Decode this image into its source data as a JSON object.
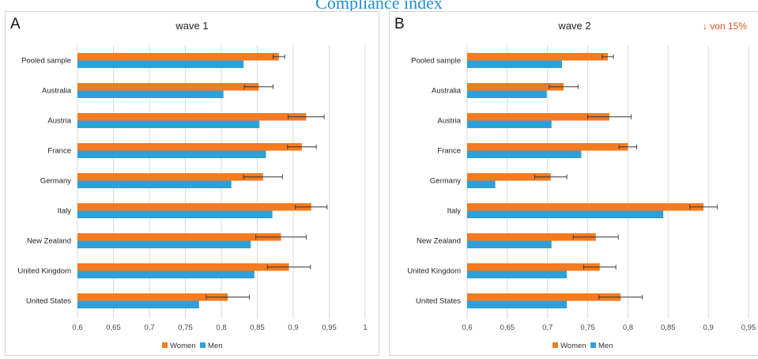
{
  "page_title": "Compliance index",
  "colors": {
    "women": "#f47b20",
    "men": "#2f9fd8",
    "grid": "#d9d9d9",
    "error_bar": "#333333"
  },
  "chart_data": [
    {
      "panel_letter": "A",
      "type": "bar",
      "orientation": "horizontal",
      "title": "wave 1",
      "annotation": "",
      "categories": [
        "Pooled sample",
        "Australia",
        "Austria",
        "France",
        "Germany",
        "Italy",
        "New Zealand",
        "United Kingdom",
        "United States"
      ],
      "series": [
        {
          "name": "Women",
          "values": [
            0.88,
            0.852,
            0.918,
            0.912,
            0.858,
            0.925,
            0.883,
            0.894,
            0.809
          ],
          "errors": [
            0.008,
            0.02,
            0.025,
            0.02,
            0.027,
            0.022,
            0.035,
            0.03,
            0.03
          ]
        },
        {
          "name": "Men",
          "values": [
            0.831,
            0.803,
            0.853,
            0.862,
            0.814,
            0.871,
            0.841,
            0.846,
            0.769
          ]
        }
      ],
      "xlim": [
        0.6,
        1.0
      ],
      "xticks": [
        "0,6",
        "0,65",
        "0,7",
        "0,75",
        "0,8",
        "0,85",
        "0,9",
        "0,95",
        "1"
      ],
      "grid": true,
      "legend_position": "bottom"
    },
    {
      "panel_letter": "B",
      "type": "bar",
      "orientation": "horizontal",
      "title": "wave 2",
      "annotation": "↓ von 15%",
      "categories": [
        "Pooled sample",
        "Australia",
        "Austria",
        "France",
        "Germany",
        "Italy",
        "New Zealand",
        "United Kingdom",
        "United States"
      ],
      "series": [
        {
          "name": "Women",
          "values": [
            0.775,
            0.72,
            0.777,
            0.8,
            0.704,
            0.894,
            0.76,
            0.765,
            0.791
          ],
          "errors": [
            0.007,
            0.018,
            0.027,
            0.011,
            0.02,
            0.017,
            0.028,
            0.02,
            0.027
          ]
        },
        {
          "name": "Men",
          "values": [
            0.718,
            0.699,
            0.705,
            0.742,
            0.635,
            0.844,
            0.705,
            0.724,
            0.724
          ]
        }
      ],
      "xlim": [
        0.6,
        0.95
      ],
      "xticks": [
        "0,6",
        "0,65",
        "0,7",
        "0,75",
        "0,8",
        "0,85",
        "0,9",
        "0,95"
      ],
      "grid": true,
      "legend_position": "bottom"
    }
  ]
}
